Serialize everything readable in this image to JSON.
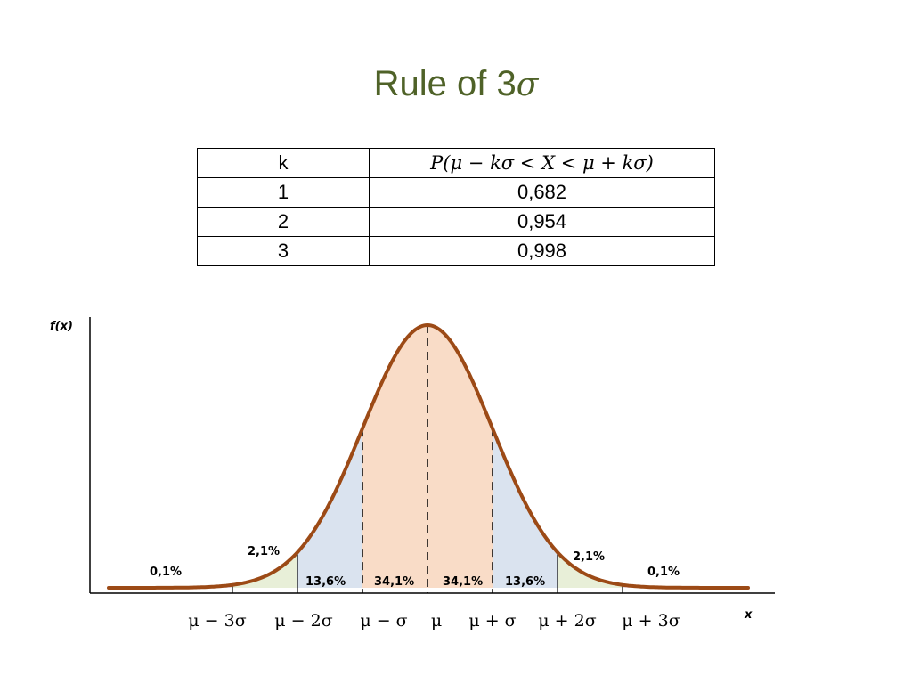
{
  "title": {
    "prefix": "Rule of 3",
    "symbol": "σ"
  },
  "table": {
    "header_k": "k",
    "header_prob": "P(μ − kσ < X < μ + kσ)",
    "rows": [
      {
        "k": "1",
        "p": "0,682"
      },
      {
        "k": "2",
        "p": "0,954"
      },
      {
        "k": "3",
        "p": "0,998"
      }
    ]
  },
  "plot": {
    "y_axis_label": "f(x)",
    "x_axis_label": "x",
    "region_labels": [
      "0,1%",
      "2,1%",
      "13,6%",
      "34,1%",
      "34,1%",
      "13,6%",
      "2,1%",
      "0,1%"
    ],
    "tick_labels": [
      "μ − 3σ",
      "μ − 2σ",
      "μ − σ",
      "μ",
      "μ + σ",
      "μ + 2σ",
      "μ + 3σ"
    ],
    "colors": {
      "curve": "#9c4a16",
      "center_band": "#f9dcc7",
      "one_sigma_band": "#dae3ef",
      "two_sigma_band": "#e8efd8",
      "tail_band": "#eadde8"
    }
  }
}
